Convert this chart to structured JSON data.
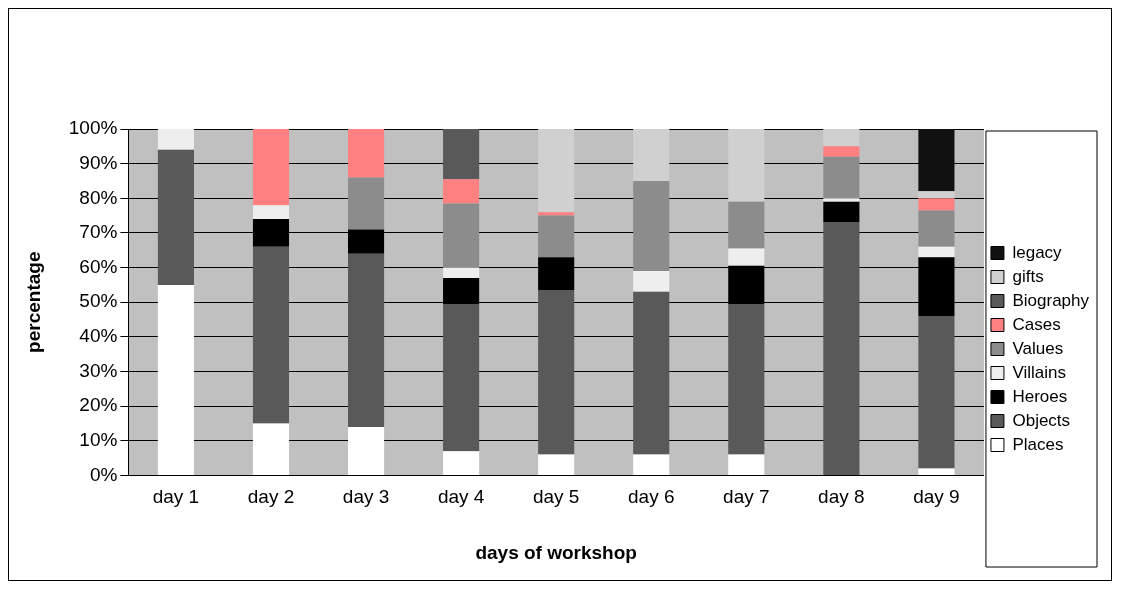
{
  "chart_data": {
    "type": "bar",
    "stacked": true,
    "xlabel": "days of workshop",
    "ylabel": "percentage",
    "categories": [
      "day 1",
      "day 2",
      "day 3",
      "day 4",
      "day 5",
      "day 6",
      "day 7",
      "day 8",
      "day 9"
    ],
    "series": [
      {
        "name": "Places",
        "color": "#ffffff",
        "values": [
          55,
          15,
          14,
          7,
          6,
          6,
          6,
          0,
          2
        ]
      },
      {
        "name": "Objects",
        "color": "#595959",
        "values": [
          39,
          51,
          50,
          42.5,
          47.5,
          47,
          43.5,
          73,
          44
        ]
      },
      {
        "name": "Heroes",
        "color": "#000000",
        "values": [
          0,
          8,
          7,
          7.5,
          9.5,
          0,
          11,
          6,
          17
        ]
      },
      {
        "name": "Villains",
        "color": "#eeeeee",
        "values": [
          6,
          4,
          0,
          3,
          0,
          6,
          5,
          1,
          3
        ]
      },
      {
        "name": "Values",
        "color": "#8c8c8c",
        "values": [
          0,
          0,
          15,
          18.5,
          12,
          26,
          13.5,
          12,
          10.5
        ]
      },
      {
        "name": "Cases",
        "color": "#ff8080",
        "values": [
          0,
          22,
          14,
          7,
          1,
          0,
          0,
          3,
          3.5
        ]
      },
      {
        "name": "Biography",
        "color": "#595959",
        "values": [
          0,
          0,
          0,
          14.5,
          0,
          0,
          0,
          0,
          0
        ]
      },
      {
        "name": "gifts",
        "color": "#d0d0d0",
        "values": [
          0,
          0,
          0,
          0,
          24,
          15,
          21,
          5,
          2
        ]
      },
      {
        "name": "legacy",
        "color": "#111111",
        "values": [
          0,
          0,
          0,
          0,
          0,
          0,
          0,
          0,
          18
        ]
      }
    ],
    "ylim": [
      0,
      100
    ],
    "yticks": [
      {
        "value": 0,
        "label": "0%"
      },
      {
        "value": 10,
        "label": "10%"
      },
      {
        "value": 20,
        "label": "20%"
      },
      {
        "value": 30,
        "label": "30%"
      },
      {
        "value": 40,
        "label": "40%"
      },
      {
        "value": 50,
        "label": "50%"
      },
      {
        "value": 60,
        "label": "60%"
      },
      {
        "value": 70,
        "label": "70%"
      },
      {
        "value": 80,
        "label": "80%"
      },
      {
        "value": 90,
        "label": "90%"
      },
      {
        "value": 100,
        "label": "100%"
      }
    ],
    "grid": "y",
    "legend": "right"
  }
}
